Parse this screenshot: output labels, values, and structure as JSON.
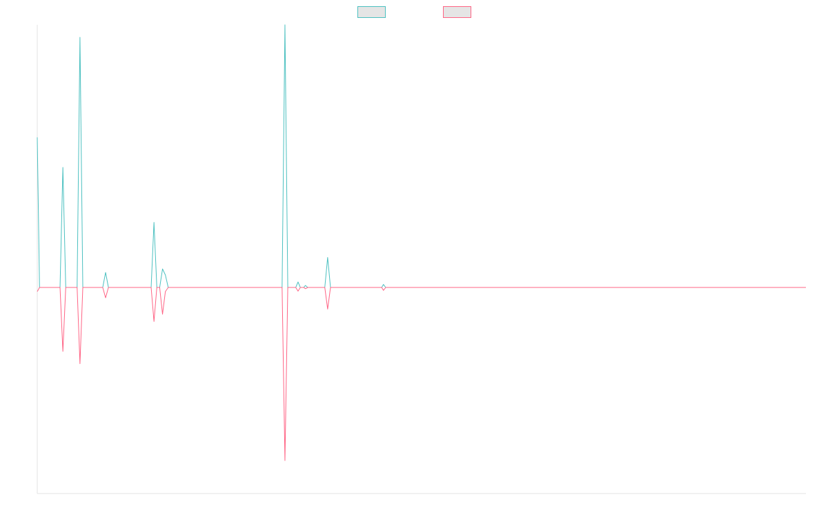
{
  "chart_data": {
    "type": "line",
    "title": "",
    "xlabel": "",
    "ylabel": "",
    "grid": false,
    "legend": "top-center",
    "x_count": 135,
    "ylim": [
      -1.0,
      1.05
    ],
    "zero_baseline": 0,
    "series": [
      {
        "label": "",
        "color": "#4bc0c0",
        "swatch_fill": "#e5e5e5",
        "points": [
          [
            0,
            0.6
          ],
          [
            0.4,
            0
          ],
          [
            4,
            0
          ],
          [
            4.5,
            0.48
          ],
          [
            5,
            0
          ],
          [
            7,
            0
          ],
          [
            7.5,
            1.0
          ],
          [
            8,
            0
          ],
          [
            11.5,
            0
          ],
          [
            12,
            0.06
          ],
          [
            12.5,
            0
          ],
          [
            20,
            0
          ],
          [
            20.5,
            0.26
          ],
          [
            21,
            0
          ],
          [
            21.5,
            0
          ],
          [
            22,
            0.074
          ],
          [
            22.5,
            0.05
          ],
          [
            23,
            0
          ],
          [
            43,
            0
          ],
          [
            43.5,
            1.05
          ],
          [
            44,
            0
          ],
          [
            45.4,
            0
          ],
          [
            45.8,
            0.022
          ],
          [
            46.2,
            0
          ],
          [
            46.8,
            0
          ],
          [
            47.1,
            0.008
          ],
          [
            47.5,
            0
          ],
          [
            50.5,
            0
          ],
          [
            51,
            0.12
          ],
          [
            51.5,
            0
          ],
          [
            60.5,
            0
          ],
          [
            60.8,
            0.012
          ],
          [
            61.2,
            0
          ],
          [
            135,
            0
          ]
        ]
      },
      {
        "label": "",
        "color": "#ff6384",
        "swatch_fill": "#e5e5e5",
        "points": [
          [
            0,
            -0.02
          ],
          [
            0.4,
            0
          ],
          [
            4,
            0
          ],
          [
            4.5,
            -0.31
          ],
          [
            5,
            0
          ],
          [
            7,
            0
          ],
          [
            7.5,
            -0.37
          ],
          [
            8,
            0
          ],
          [
            11.5,
            0
          ],
          [
            12,
            -0.05
          ],
          [
            12.5,
            0
          ],
          [
            20,
            0
          ],
          [
            20.5,
            -0.165
          ],
          [
            21,
            0
          ],
          [
            21.5,
            0
          ],
          [
            22,
            -0.13
          ],
          [
            22.5,
            -0.02
          ],
          [
            23,
            0
          ],
          [
            43,
            0
          ],
          [
            43.5,
            -0.84
          ],
          [
            44,
            0
          ],
          [
            45.4,
            0
          ],
          [
            45.8,
            -0.018
          ],
          [
            46.2,
            0
          ],
          [
            46.8,
            0
          ],
          [
            47.1,
            -0.006
          ],
          [
            47.5,
            0
          ],
          [
            50.5,
            0
          ],
          [
            51,
            -0.105
          ],
          [
            51.5,
            0
          ],
          [
            60.5,
            0
          ],
          [
            60.8,
            -0.014
          ],
          [
            61.2,
            0
          ],
          [
            135,
            0
          ]
        ]
      }
    ]
  }
}
